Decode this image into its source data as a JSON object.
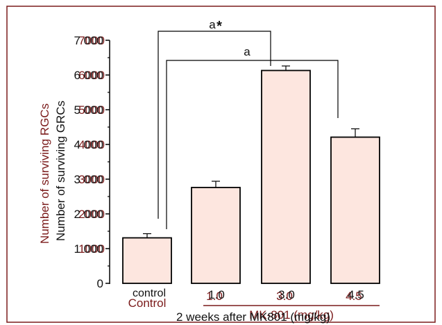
{
  "chart_data": {
    "type": "bar",
    "title": "",
    "categories": [
      "control",
      "1.0",
      "3.0",
      "4.5"
    ],
    "values": [
      1310,
      2760,
      6130,
      4210
    ],
    "errors": [
      120,
      180,
      130,
      240
    ],
    "ylim": [
      0,
      7000
    ],
    "yticks": [
      0,
      1000,
      2000,
      3000,
      4000,
      5000,
      6000,
      7000
    ],
    "ytick_labels": [
      "0",
      "1 000",
      "2 000",
      "3 000",
      "4 000",
      "5 000",
      "6 000",
      "7 000"
    ],
    "ytick_labels_overlay": [
      "",
      "1000",
      "2000",
      "3000",
      "4000",
      "5000",
      "6000",
      "7000"
    ],
    "ylabel": "Number of surviving GRCs",
    "ylabel_overlay": "Number of surviving RGCs",
    "xlabel": "2 weeks after MK801 (mg/kg)",
    "xlabel_overlay": "MK-801 (mg/kg)",
    "category_overlay": [
      "Control",
      "1.0",
      "3.0",
      "4.5"
    ],
    "annotations": [
      {
        "from": 0,
        "to": 2,
        "label": "a",
        "marker": "*"
      },
      {
        "from": 0,
        "to": 3,
        "label": "a"
      }
    ],
    "grid": false,
    "legend": "none",
    "colors": {
      "bar_fill": "#fde6df",
      "bar_stroke": "#000000",
      "overlay_text": "#7a1a1a",
      "frame": "#7a1a1a"
    }
  }
}
